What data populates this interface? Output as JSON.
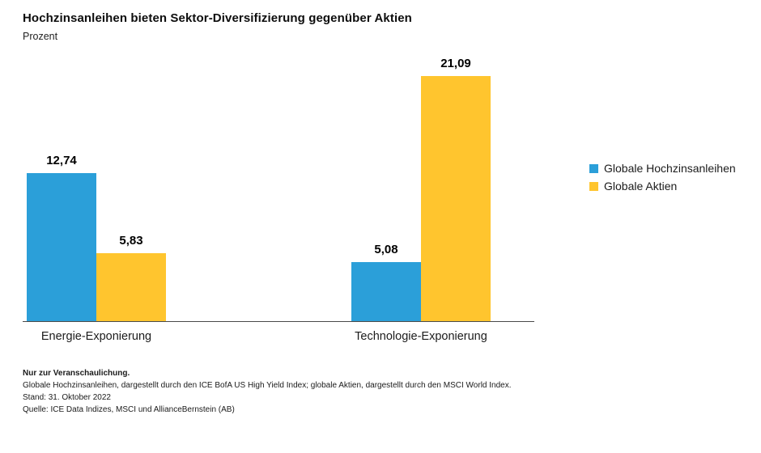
{
  "header": {
    "title": "Hochzinsanleihen bieten Sektor-Diversifizierung gegenüber Aktien",
    "subtitle": "Prozent"
  },
  "chart_data": {
    "type": "bar",
    "title": "Hochzinsanleihen bieten Sektor-Diversifizierung gegenüber Aktien",
    "ylabel": "Prozent",
    "xlabel": "",
    "ylim": [
      0,
      22
    ],
    "grid": false,
    "legend_position": "right",
    "categories": [
      "Energie-Exponierung",
      "Technologie-Exponierung"
    ],
    "series": [
      {
        "name": "Globale Hochzinsanleihen",
        "color": "#2B9FD9",
        "values": [
          12.74,
          5.08
        ],
        "labels": [
          "12,74",
          "5,08"
        ]
      },
      {
        "name": "Globale Aktien",
        "color": "#FFC52E",
        "values": [
          5.83,
          21.09
        ],
        "labels": [
          "5,83",
          "21,09"
        ]
      }
    ]
  },
  "legend": [
    {
      "label": "Globale Hochzinsanleihen",
      "color": "#2B9FD9"
    },
    {
      "label": "Globale Aktien",
      "color": "#FFC52E"
    }
  ],
  "footnotes": {
    "disclaimer": "Nur zur Veranschaulichung.",
    "line1": "Globale Hochzinsanleihen, dargestellt durch den ICE BofA US High Yield Index; globale Aktien, dargestellt durch den MSCI World Index.",
    "line2": "Stand: 31. Oktober 2022",
    "line3": "Quelle: ICE Data Indizes, MSCI und AllianceBernstein (AB)"
  }
}
